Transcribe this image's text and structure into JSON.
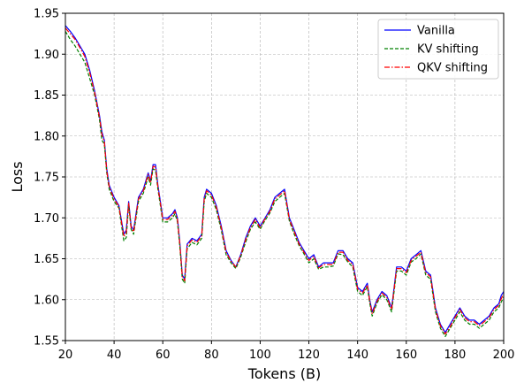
{
  "chart_data": {
    "type": "line",
    "title": "",
    "xlabel": "Tokens (B)",
    "ylabel": "Loss",
    "xlim": [
      20,
      200
    ],
    "ylim": [
      1.55,
      1.95
    ],
    "x_ticks": [
      20,
      40,
      60,
      80,
      100,
      120,
      140,
      160,
      180,
      200
    ],
    "x_tick_labels": [
      "20",
      "40",
      "60",
      "80",
      "100",
      "120",
      "140",
      "160",
      "180",
      "200"
    ],
    "y_ticks": [
      1.55,
      1.6,
      1.65,
      1.7,
      1.75,
      1.8,
      1.85,
      1.9,
      1.95
    ],
    "y_tick_labels": [
      "1.55",
      "1.60",
      "1.65",
      "1.70",
      "1.75",
      "1.80",
      "1.85",
      "1.90",
      "1.95"
    ],
    "grid": true,
    "legend_position": "top-right",
    "x": [
      20,
      22,
      24,
      26,
      28,
      30,
      32,
      34,
      35,
      36,
      37,
      38,
      40,
      42,
      44,
      45,
      46,
      47,
      48,
      50,
      52,
      54,
      55,
      56,
      57,
      58,
      59,
      60,
      62,
      64,
      65,
      66,
      67,
      68,
      69,
      70,
      72,
      74,
      76,
      77,
      78,
      80,
      82,
      84,
      86,
      88,
      90,
      92,
      94,
      96,
      98,
      100,
      102,
      104,
      106,
      108,
      110,
      112,
      114,
      116,
      118,
      120,
      122,
      124,
      126,
      128,
      130,
      132,
      134,
      136,
      138,
      140,
      142,
      144,
      145,
      146,
      148,
      150,
      152,
      154,
      155,
      156,
      158,
      160,
      162,
      164,
      166,
      168,
      170,
      172,
      174,
      176,
      178,
      180,
      182,
      184,
      186,
      188,
      190,
      192,
      194,
      196,
      198,
      199,
      200
    ],
    "series": [
      {
        "name": "Vanilla",
        "color": "#0000ff",
        "style": "solid",
        "values": [
          1.935,
          1.928,
          1.92,
          1.91,
          1.9,
          1.88,
          1.855,
          1.825,
          1.805,
          1.795,
          1.76,
          1.74,
          1.725,
          1.715,
          1.68,
          1.685,
          1.72,
          1.69,
          1.685,
          1.725,
          1.735,
          1.755,
          1.745,
          1.765,
          1.765,
          1.74,
          1.72,
          1.7,
          1.7,
          1.705,
          1.71,
          1.7,
          1.67,
          1.63,
          1.625,
          1.668,
          1.675,
          1.672,
          1.68,
          1.725,
          1.735,
          1.73,
          1.715,
          1.69,
          1.66,
          1.648,
          1.64,
          1.655,
          1.675,
          1.69,
          1.7,
          1.69,
          1.7,
          1.71,
          1.725,
          1.73,
          1.735,
          1.7,
          1.685,
          1.67,
          1.66,
          1.65,
          1.655,
          1.64,
          1.645,
          1.645,
          1.645,
          1.66,
          1.66,
          1.65,
          1.645,
          1.615,
          1.61,
          1.62,
          1.6,
          1.585,
          1.6,
          1.61,
          1.605,
          1.59,
          1.615,
          1.64,
          1.64,
          1.635,
          1.65,
          1.655,
          1.66,
          1.635,
          1.63,
          1.59,
          1.57,
          1.56,
          1.57,
          1.58,
          1.59,
          1.58,
          1.575,
          1.575,
          1.57,
          1.575,
          1.58,
          1.59,
          1.595,
          1.605,
          1.61
        ]
      },
      {
        "name": "KV shifting",
        "color": "#008000",
        "style": "dashed",
        "values": [
          1.928,
          1.918,
          1.91,
          1.9,
          1.89,
          1.87,
          1.85,
          1.82,
          1.795,
          1.79,
          1.755,
          1.735,
          1.72,
          1.712,
          1.672,
          1.676,
          1.716,
          1.686,
          1.68,
          1.72,
          1.73,
          1.75,
          1.74,
          1.76,
          1.758,
          1.735,
          1.715,
          1.695,
          1.695,
          1.7,
          1.705,
          1.695,
          1.665,
          1.625,
          1.62,
          1.662,
          1.67,
          1.667,
          1.675,
          1.72,
          1.73,
          1.725,
          1.71,
          1.685,
          1.655,
          1.645,
          1.638,
          1.652,
          1.67,
          1.686,
          1.695,
          1.686,
          1.697,
          1.706,
          1.72,
          1.725,
          1.73,
          1.696,
          1.68,
          1.666,
          1.656,
          1.645,
          1.65,
          1.637,
          1.64,
          1.64,
          1.641,
          1.656,
          1.655,
          1.646,
          1.64,
          1.61,
          1.605,
          1.616,
          1.596,
          1.58,
          1.596,
          1.606,
          1.6,
          1.585,
          1.61,
          1.635,
          1.635,
          1.63,
          1.646,
          1.65,
          1.656,
          1.63,
          1.625,
          1.585,
          1.565,
          1.555,
          1.565,
          1.575,
          1.585,
          1.575,
          1.57,
          1.57,
          1.565,
          1.57,
          1.575,
          1.585,
          1.59,
          1.597,
          1.603
        ]
      },
      {
        "name": "QKV shifting",
        "color": "#ff0000",
        "style": "dashdot",
        "values": [
          1.932,
          1.925,
          1.918,
          1.908,
          1.897,
          1.877,
          1.853,
          1.823,
          1.802,
          1.793,
          1.757,
          1.738,
          1.723,
          1.714,
          1.677,
          1.682,
          1.718,
          1.688,
          1.683,
          1.723,
          1.733,
          1.753,
          1.743,
          1.763,
          1.762,
          1.738,
          1.718,
          1.698,
          1.698,
          1.703,
          1.708,
          1.698,
          1.668,
          1.628,
          1.623,
          1.666,
          1.673,
          1.67,
          1.678,
          1.723,
          1.733,
          1.728,
          1.713,
          1.688,
          1.658,
          1.647,
          1.64,
          1.654,
          1.673,
          1.688,
          1.698,
          1.688,
          1.699,
          1.708,
          1.723,
          1.728,
          1.733,
          1.698,
          1.683,
          1.668,
          1.658,
          1.648,
          1.653,
          1.639,
          1.643,
          1.643,
          1.643,
          1.658,
          1.658,
          1.648,
          1.643,
          1.613,
          1.608,
          1.618,
          1.598,
          1.583,
          1.598,
          1.608,
          1.603,
          1.588,
          1.613,
          1.638,
          1.638,
          1.633,
          1.648,
          1.653,
          1.658,
          1.633,
          1.628,
          1.588,
          1.568,
          1.558,
          1.567,
          1.578,
          1.588,
          1.578,
          1.573,
          1.573,
          1.568,
          1.573,
          1.578,
          1.588,
          1.593,
          1.601,
          1.607
        ]
      }
    ]
  }
}
